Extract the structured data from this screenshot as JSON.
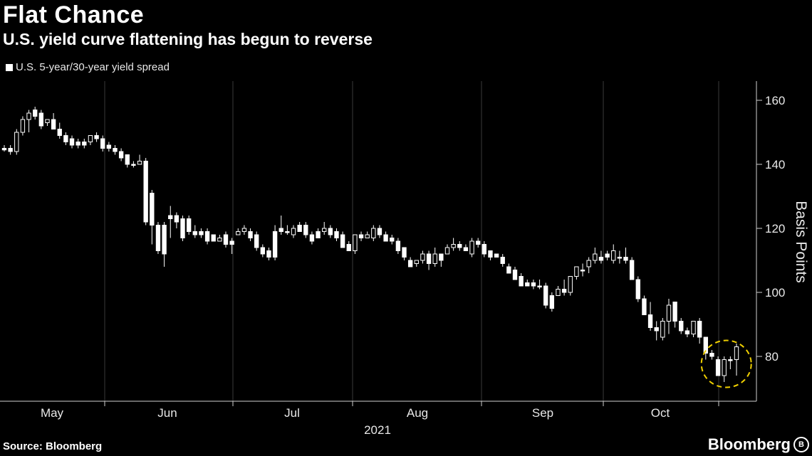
{
  "header": {
    "title": "Flat Chance",
    "subtitle": "U.S. yield curve flattening has begun to reverse"
  },
  "footer": {
    "source": "Source: Bloomberg",
    "brand": "Bloomberg"
  },
  "chart_data": {
    "type": "candlestick",
    "title": "Flat Chance",
    "subtitle": "U.S. yield curve flattening has begun to reverse",
    "ylabel": "Basis Points",
    "xlabel": "2021",
    "ylim": [
      66,
      166
    ],
    "yticks": [
      80,
      100,
      120,
      140,
      160
    ],
    "x_ticks": [
      "May",
      "Jun",
      "Jul",
      "Aug",
      "Sep",
      "Oct"
    ],
    "year_label": "2021",
    "legend": [
      {
        "name": "U.S. 5-year/30-year yield spread",
        "color": "#ffffff"
      }
    ],
    "legend_position": "top-left",
    "y_axis_position": "right",
    "grid": {
      "vertical": true,
      "horizontal": false
    },
    "annotation": {
      "type": "dashed-circle",
      "color": "#f0d000",
      "target": "late-October lows"
    },
    "series": [
      {
        "name": "U.S. 5-year/30-year yield spread",
        "candles": [
          [
            145,
            144.5,
            146,
            144
          ],
          [
            145,
            144,
            146,
            143
          ],
          [
            144,
            150,
            151,
            143
          ],
          [
            150,
            154,
            155,
            149
          ],
          [
            154,
            156,
            157,
            150
          ],
          [
            157,
            155,
            158,
            154
          ],
          [
            156,
            152,
            157,
            151
          ],
          [
            153,
            154,
            154,
            152
          ],
          [
            154,
            151,
            156,
            151
          ],
          [
            151,
            149,
            153,
            148
          ],
          [
            149,
            147,
            150,
            146
          ],
          [
            148,
            146,
            149,
            145
          ],
          [
            147,
            146,
            148,
            145
          ],
          [
            147,
            146,
            148,
            145
          ],
          [
            147,
            149,
            149,
            146
          ],
          [
            149,
            148,
            150,
            147
          ],
          [
            148,
            145,
            149,
            144
          ],
          [
            146,
            145,
            147,
            144
          ],
          [
            145,
            144,
            146,
            143
          ],
          [
            144,
            142,
            145,
            141
          ],
          [
            143,
            140,
            143,
            139
          ],
          [
            140,
            140,
            141,
            139
          ],
          [
            140,
            141,
            143,
            140
          ],
          [
            141,
            122,
            142,
            121
          ],
          [
            131,
            121,
            132,
            115
          ],
          [
            121,
            113,
            122,
            112
          ],
          [
            121,
            112,
            122,
            108
          ],
          [
            124,
            123,
            127,
            117
          ],
          [
            124,
            122,
            125,
            120
          ],
          [
            123,
            117,
            124,
            116
          ],
          [
            123,
            119,
            124,
            118
          ],
          [
            119,
            118,
            121,
            117
          ],
          [
            119,
            118,
            120,
            117
          ],
          [
            119,
            116,
            120,
            115
          ],
          [
            118,
            116,
            118,
            116
          ],
          [
            116,
            117,
            118,
            116
          ],
          [
            118,
            115,
            119,
            114
          ],
          [
            116,
            115,
            117,
            112
          ],
          [
            118,
            119,
            120,
            118
          ],
          [
            119,
            120,
            121,
            118
          ],
          [
            119,
            117,
            120,
            116
          ],
          [
            118,
            114,
            119,
            113
          ],
          [
            114,
            112,
            115,
            111
          ],
          [
            113,
            111,
            114,
            110
          ],
          [
            119,
            111,
            121,
            110
          ],
          [
            120,
            119,
            124,
            118
          ],
          [
            119,
            119,
            121,
            118
          ],
          [
            118,
            120,
            121,
            117
          ],
          [
            121,
            119,
            122,
            119
          ],
          [
            121,
            118,
            122,
            117
          ],
          [
            118,
            116,
            119,
            115
          ],
          [
            119,
            117,
            120,
            117
          ],
          [
            119,
            120,
            122,
            118
          ],
          [
            120,
            118,
            121,
            117
          ],
          [
            119,
            117,
            120,
            116
          ],
          [
            118,
            114,
            119,
            114
          ],
          [
            115,
            113,
            116,
            113
          ],
          [
            113,
            118,
            118,
            112
          ],
          [
            118,
            117,
            119,
            116
          ],
          [
            117,
            118,
            119,
            117
          ],
          [
            117,
            120,
            121,
            116
          ],
          [
            120,
            118,
            121,
            117
          ],
          [
            118,
            116,
            119,
            116
          ],
          [
            117,
            116,
            118,
            115
          ],
          [
            116,
            113,
            117,
            112
          ],
          [
            114,
            111,
            114,
            110
          ],
          [
            110,
            108,
            111,
            108
          ],
          [
            109,
            110,
            110,
            108
          ],
          [
            110,
            112,
            113,
            109
          ],
          [
            112,
            109,
            113,
            107
          ],
          [
            109,
            112,
            114,
            108
          ],
          [
            112,
            110,
            112,
            108
          ],
          [
            112,
            114,
            115,
            112
          ],
          [
            114,
            115,
            117,
            113
          ],
          [
            115,
            114,
            116,
            113
          ],
          [
            114,
            113,
            115,
            113
          ],
          [
            112,
            116,
            117,
            111
          ],
          [
            116,
            115,
            117,
            114
          ],
          [
            115,
            112,
            116,
            111
          ],
          [
            113,
            111,
            113,
            110
          ],
          [
            112,
            111,
            112,
            111
          ],
          [
            111,
            109,
            112,
            108
          ],
          [
            108,
            106,
            109,
            106
          ],
          [
            107,
            104,
            108,
            104
          ],
          [
            105,
            102,
            106,
            102
          ],
          [
            103,
            102,
            104,
            102
          ],
          [
            103,
            102,
            104,
            101
          ],
          [
            102,
            102,
            104,
            101
          ],
          [
            102,
            96,
            103,
            95
          ],
          [
            99,
            95,
            100,
            94
          ],
          [
            99,
            101,
            102,
            99
          ],
          [
            101,
            100,
            104,
            99
          ],
          [
            100,
            105,
            105,
            99
          ],
          [
            105,
            108,
            108,
            104
          ],
          [
            107,
            107,
            109,
            105
          ],
          [
            108,
            110,
            111,
            106
          ],
          [
            110,
            112,
            114,
            109
          ],
          [
            111,
            110,
            113,
            109
          ],
          [
            112,
            111,
            113,
            110
          ],
          [
            110,
            113,
            115,
            109
          ],
          [
            111,
            111,
            113,
            109
          ],
          [
            111,
            110,
            114,
            109
          ],
          [
            110,
            104,
            111,
            104
          ],
          [
            104,
            98,
            105,
            97
          ],
          [
            98,
            93,
            99,
            93
          ],
          [
            93,
            89,
            97,
            88
          ],
          [
            89,
            88,
            91,
            85
          ],
          [
            86,
            91,
            92,
            85
          ],
          [
            91,
            96,
            98,
            87
          ],
          [
            97,
            91,
            97,
            89
          ],
          [
            91,
            88,
            92,
            87
          ],
          [
            88,
            87,
            89,
            86
          ],
          [
            87,
            91,
            91,
            86
          ],
          [
            91,
            86,
            92,
            84
          ],
          [
            86,
            81,
            86,
            79
          ],
          [
            81,
            80,
            82,
            79
          ],
          [
            79,
            74,
            80,
            74
          ],
          [
            74,
            79,
            80,
            72
          ],
          [
            79,
            79,
            80,
            76
          ],
          [
            79,
            83,
            84,
            74
          ]
        ]
      }
    ]
  }
}
